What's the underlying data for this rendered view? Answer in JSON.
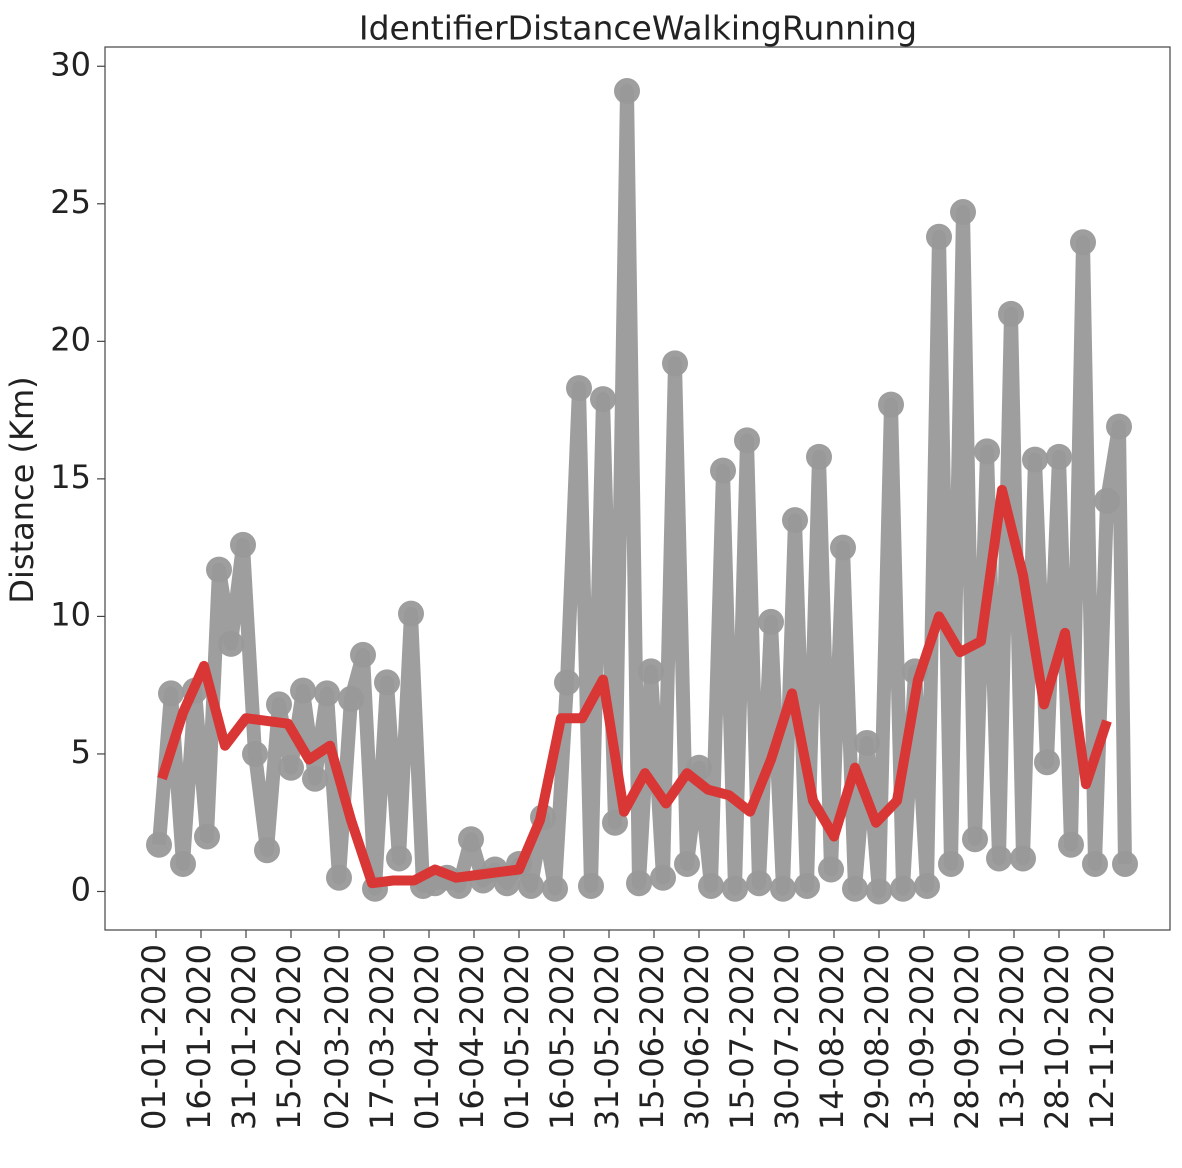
{
  "chart_data": {
    "type": "line",
    "title": "IdentifierDistanceWalkingRunning",
    "ylabel": "Distance (Km)",
    "xlim": [
      "15-12-2019",
      "04-12-2020"
    ],
    "xticks": [
      "01-01-2020",
      "16-01-2020",
      "31-01-2020",
      "15-02-2020",
      "02-03-2020",
      "17-03-2020",
      "01-04-2020",
      "16-04-2020",
      "01-05-2020",
      "16-05-2020",
      "31-05-2020",
      "15-06-2020",
      "30-06-2020",
      "15-07-2020",
      "30-07-2020",
      "14-08-2020",
      "29-08-2020",
      "13-09-2020",
      "28-09-2020",
      "13-10-2020",
      "28-10-2020",
      "12-11-2020"
    ],
    "ylim": [
      -1.4,
      30.7
    ],
    "yticks": [
      0,
      5,
      10,
      15,
      20,
      25,
      30
    ],
    "series": [
      {
        "color": "#999999",
        "marker": true,
        "x": [
          "02-01-2020",
          "06-01-2020",
          "10-01-2020",
          "14-01-2020",
          "18-01-2020",
          "22-01-2020",
          "26-01-2020",
          "30-01-2020",
          "03-02-2020",
          "07-02-2020",
          "11-02-2020",
          "15-02-2020",
          "19-02-2020",
          "23-02-2020",
          "27-02-2020",
          "02-03-2020",
          "06-03-2020",
          "10-03-2020",
          "14-03-2020",
          "18-03-2020",
          "22-03-2020",
          "26-03-2020",
          "30-03-2020",
          "03-04-2020",
          "07-04-2020",
          "11-04-2020",
          "15-04-2020",
          "19-04-2020",
          "23-04-2020",
          "27-04-2020",
          "01-05-2020",
          "05-05-2020",
          "09-05-2020",
          "13-05-2020",
          "17-05-2020",
          "21-05-2020",
          "25-05-2020",
          "29-05-2020",
          "02-06-2020",
          "06-06-2020",
          "10-06-2020",
          "14-06-2020",
          "18-06-2020",
          "22-06-2020",
          "26-06-2020",
          "30-06-2020",
          "04-07-2020",
          "08-07-2020",
          "12-07-2020",
          "16-07-2020",
          "20-07-2020",
          "24-07-2020",
          "28-07-2020",
          "01-08-2020",
          "05-08-2020",
          "09-08-2020",
          "13-08-2020",
          "17-08-2020",
          "21-08-2020",
          "25-08-2020",
          "29-08-2020",
          "02-09-2020",
          "06-09-2020",
          "10-09-2020",
          "14-09-2020",
          "18-09-2020",
          "22-09-2020",
          "26-09-2020",
          "30-09-2020",
          "04-10-2020",
          "08-10-2020",
          "12-10-2020",
          "16-10-2020",
          "20-10-2020",
          "24-10-2020",
          "28-10-2020",
          "01-11-2020",
          "05-11-2020",
          "09-11-2020",
          "13-11-2020",
          "17-11-2020",
          "19-11-2020"
        ],
        "values": [
          1.7,
          7.2,
          1.0,
          7.3,
          2.0,
          11.7,
          9.0,
          12.6,
          5.0,
          1.5,
          6.8,
          4.5,
          7.3,
          4.1,
          7.2,
          0.5,
          7.0,
          8.6,
          0.1,
          7.6,
          1.2,
          10.1,
          0.2,
          0.3,
          0.5,
          0.2,
          1.9,
          0.4,
          0.8,
          0.3,
          1.0,
          0.2,
          2.7,
          0.1,
          7.6,
          18.3,
          0.2,
          17.9,
          2.5,
          29.1,
          0.3,
          8.0,
          0.5,
          19.2,
          1.0,
          4.5,
          0.2,
          15.3,
          0.1,
          16.4,
          0.3,
          9.8,
          0.1,
          13.5,
          0.2,
          15.8,
          0.8,
          12.5,
          0.1,
          5.4,
          0.0,
          17.7,
          0.1,
          8.0,
          0.2,
          23.8,
          1.0,
          24.7,
          1.9,
          16.0,
          1.2,
          21.0,
          1.2,
          15.7,
          4.7,
          15.8,
          1.7,
          23.6,
          1.0,
          14.2,
          16.9,
          1.0
        ]
      },
      {
        "color": "#d93636",
        "x": [
          "03-01-2020",
          "10-01-2020",
          "17-01-2020",
          "24-01-2020",
          "31-01-2020",
          "07-02-2020",
          "14-02-2020",
          "21-02-2020",
          "28-02-2020",
          "06-03-2020",
          "13-03-2020",
          "20-03-2020",
          "27-03-2020",
          "03-04-2020",
          "10-04-2020",
          "17-04-2020",
          "24-04-2020",
          "01-05-2020",
          "08-05-2020",
          "15-05-2020",
          "22-05-2020",
          "29-05-2020",
          "05-06-2020",
          "12-06-2020",
          "19-06-2020",
          "26-06-2020",
          "03-07-2020",
          "10-07-2020",
          "17-07-2020",
          "24-07-2020",
          "31-07-2020",
          "07-08-2020",
          "14-08-2020",
          "21-08-2020",
          "28-08-2020",
          "04-09-2020",
          "11-09-2020",
          "18-09-2020",
          "25-09-2020",
          "02-10-2020",
          "09-10-2020",
          "16-10-2020",
          "23-10-2020",
          "30-10-2020",
          "06-11-2020",
          "13-11-2020"
        ],
        "values": [
          4.1,
          6.5,
          8.2,
          5.3,
          6.3,
          6.2,
          6.1,
          4.8,
          5.3,
          2.6,
          0.3,
          0.4,
          0.4,
          0.8,
          0.5,
          0.6,
          0.7,
          0.8,
          2.6,
          6.3,
          6.3,
          7.7,
          2.9,
          4.3,
          3.2,
          4.3,
          3.7,
          3.5,
          2.9,
          4.8,
          7.2,
          3.3,
          2.0,
          4.5,
          2.5,
          3.3,
          7.7,
          10.0,
          8.7,
          9.1,
          14.6,
          11.5,
          6.8,
          9.4,
          3.9,
          6.2
        ]
      }
    ]
  }
}
